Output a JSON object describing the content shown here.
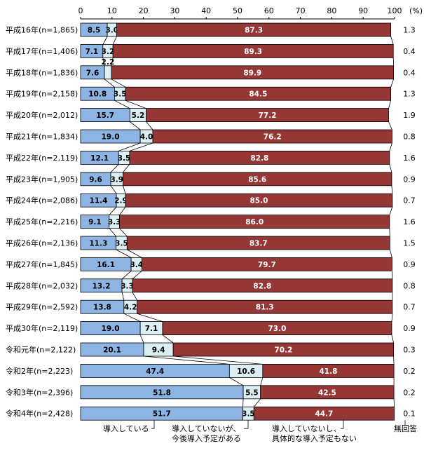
{
  "chart_data": {
    "type": "bar",
    "stacked": true,
    "orientation": "horizontal",
    "xlim": [
      0,
      100
    ],
    "x_ticks": [
      "0",
      "10",
      "20",
      "30",
      "40",
      "50",
      "60",
      "70",
      "80",
      "90",
      "100"
    ],
    "unit_label": "(%)",
    "categories": [
      "平成16年(n=1,865)",
      "平成17年(n=1,406)",
      "平成18年(n=1,836)",
      "平成19年(n=2,158)",
      "平成20年(n=2,012)",
      "平成21年(n=1,834)",
      "平成22年(n=2,119)",
      "平成23年(n=1,905)",
      "平成24年(n=2,086)",
      "平成25年(n=2,216)",
      "平成26年(n=2,136)",
      "平成27年(n=1,845)",
      "平成28年(n=2,032)",
      "平成29年(n=2,592)",
      "平成30年(n=2,119)",
      "令和元年(n=2,122)",
      "令和2年(n=2,223)",
      "令和3年(n=2,396)",
      "令和4年(n=2,428)"
    ],
    "series": [
      {
        "name": "導入している",
        "color": "#8db4e2",
        "values": [
          8.5,
          7.1,
          7.6,
          10.8,
          15.7,
          19.0,
          12.1,
          9.6,
          11.4,
          9.1,
          11.3,
          16.1,
          13.2,
          13.8,
          19.0,
          20.1,
          47.4,
          51.8,
          51.7
        ],
        "labels": [
          "8.5",
          "7.1",
          "7.6",
          "10.8",
          "15.7",
          "19.0",
          "12.1",
          "9.6",
          "11.4",
          "9.1",
          "11.3",
          "16.1",
          "13.2",
          "13.8",
          "19.0",
          "20.1",
          "47.4",
          "51.8",
          "51.7"
        ]
      },
      {
        "name": "導入していないが、今後導入予定がある",
        "color": "#dbeef4",
        "values": [
          3.0,
          3.2,
          2.2,
          3.5,
          5.2,
          4.0,
          3.5,
          3.9,
          2.9,
          3.3,
          3.5,
          3.4,
          3.3,
          4.2,
          7.1,
          9.4,
          10.6,
          5.5,
          3.5
        ],
        "labels": [
          "3.0",
          "3.2",
          "2.2",
          "3.5",
          "5.2",
          "4.0",
          "3.5",
          "3.9",
          "2.9",
          "3.3",
          "3.5",
          "3.4",
          "3.3",
          "4.2",
          "7.1",
          "9.4",
          "10.6",
          "5.5",
          "3.5"
        ]
      },
      {
        "name": "導入していないし、具体的な導入予定もない",
        "color": "#953735",
        "values": [
          87.3,
          89.3,
          89.9,
          84.5,
          77.2,
          76.2,
          82.8,
          85.6,
          85.0,
          86.0,
          83.7,
          79.7,
          82.8,
          81.3,
          73.0,
          70.2,
          41.8,
          42.5,
          44.7
        ],
        "labels": [
          "87.3",
          "89.3",
          "89.9",
          "84.5",
          "77.2",
          "76.2",
          "82.8",
          "85.6",
          "85.0",
          "86.0",
          "83.7",
          "79.7",
          "82.8",
          "81.3",
          "73.0",
          "70.2",
          "41.8",
          "42.5",
          "44.7"
        ]
      },
      {
        "name": "無回答",
        "color": "#ffffff",
        "values": [
          1.3,
          0.4,
          0.4,
          1.3,
          1.9,
          0.8,
          1.6,
          0.9,
          0.7,
          1.6,
          1.5,
          0.9,
          0.8,
          0.7,
          0.9,
          0.3,
          0.2,
          0.2,
          0.1
        ],
        "labels": [
          "1.3",
          "0.4",
          "0.4",
          "1.3",
          "1.9",
          "0.8",
          "1.6",
          "0.9",
          "0.7",
          "1.6",
          "1.5",
          "0.9",
          "0.8",
          "0.7",
          "0.9",
          "0.3",
          "0.2",
          "0.2",
          "0.1"
        ]
      }
    ],
    "legend": [
      {
        "lines": [
          "導入している"
        ]
      },
      {
        "lines": [
          "導入していないが、",
          "今後導入予定がある"
        ]
      },
      {
        "lines": [
          "導入していないし、",
          "具体的な導入予定もない"
        ]
      },
      {
        "lines": [
          "無回答"
        ]
      }
    ],
    "legend_placement": "bottom",
    "grid": false
  }
}
